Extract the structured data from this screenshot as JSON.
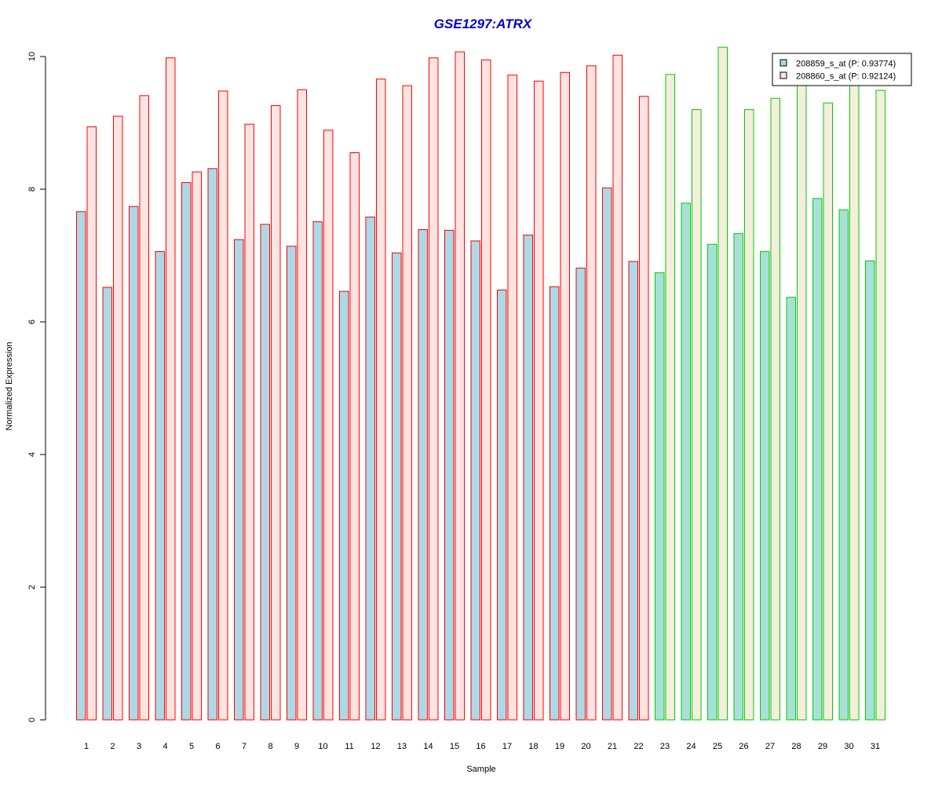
{
  "chart_data": {
    "type": "bar",
    "title": "GSE1297:ATRX",
    "xlabel": "Sample",
    "ylabel": "Normalized Expression",
    "ylim": [
      0,
      10
    ],
    "yticks": [
      0,
      2,
      4,
      6,
      8,
      10
    ],
    "categories": [
      "1",
      "2",
      "3",
      "4",
      "5",
      "6",
      "7",
      "8",
      "9",
      "10",
      "11",
      "12",
      "13",
      "14",
      "15",
      "16",
      "17",
      "18",
      "19",
      "20",
      "21",
      "22",
      "23",
      "24",
      "25",
      "26",
      "27",
      "28",
      "29",
      "30",
      "31"
    ],
    "groups": [
      {
        "color": "#ff0000",
        "categories_count": 22
      },
      {
        "color": "#00cc00",
        "categories_count": 9
      }
    ],
    "series": [
      {
        "name": "208859_s_at (P: 0.93774)",
        "fill": "#add8e6",
        "group_fills": [
          "#add8e6",
          "#a8e0d8"
        ],
        "values": [
          7.66,
          6.52,
          7.74,
          7.06,
          8.1,
          8.31,
          7.24,
          7.47,
          7.14,
          7.51,
          6.46,
          7.58,
          7.04,
          7.39,
          7.38,
          7.22,
          6.48,
          7.31,
          6.53,
          6.81,
          8.02,
          6.91,
          6.74,
          7.79,
          7.17,
          7.33,
          7.06,
          6.37,
          7.86,
          7.69,
          6.92
        ]
      },
      {
        "name": "208860_s_at (P: 0.92124)",
        "fill": "#ffe4e1",
        "group_fills": [
          "#ffe4e1",
          "#f5eedc"
        ],
        "values": [
          8.94,
          9.1,
          9.41,
          9.98,
          8.26,
          9.48,
          8.98,
          9.26,
          9.5,
          8.89,
          8.55,
          9.66,
          9.56,
          9.98,
          10.07,
          9.95,
          9.72,
          9.63,
          9.76,
          9.86,
          10.02,
          9.4,
          9.73,
          9.2,
          10.14,
          9.2,
          9.37,
          9.6,
          9.3,
          9.6,
          9.49
        ]
      }
    ],
    "legend": {
      "placement": "top-right"
    },
    "grid": false
  }
}
